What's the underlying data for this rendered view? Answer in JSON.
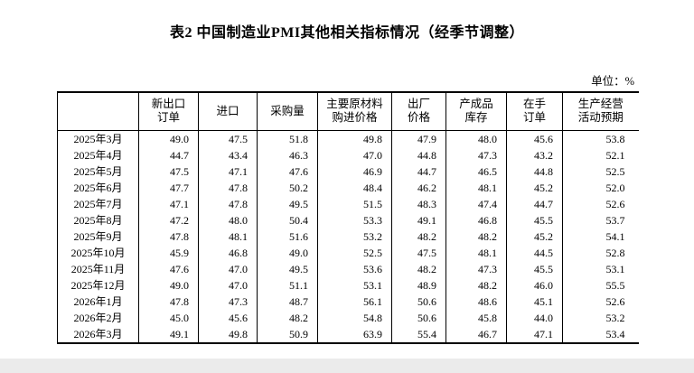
{
  "title": "表2 中国制造业PMI其他相关指标情况（经季节调整）",
  "unit_label": "单位：%",
  "table": {
    "columns": [
      "",
      "新出口\n订单",
      "进口",
      "采购量",
      "主要原材料\n购进价格",
      "出厂\n价格",
      "产成品\n库存",
      "在手\n订单",
      "生产经营\n活动预期"
    ],
    "rows": [
      {
        "month": "2025年3月",
        "values": [
          "49.0",
          "47.5",
          "51.8",
          "49.8",
          "47.9",
          "48.0",
          "45.6",
          "53.8"
        ]
      },
      {
        "month": "2025年4月",
        "values": [
          "44.7",
          "43.4",
          "46.3",
          "47.0",
          "44.8",
          "47.3",
          "43.2",
          "52.1"
        ]
      },
      {
        "month": "2025年5月",
        "values": [
          "47.5",
          "47.1",
          "47.6",
          "46.9",
          "44.7",
          "46.5",
          "44.8",
          "52.5"
        ]
      },
      {
        "month": "2025年6月",
        "values": [
          "47.7",
          "47.8",
          "50.2",
          "48.4",
          "46.2",
          "48.1",
          "45.2",
          "52.0"
        ]
      },
      {
        "month": "2025年7月",
        "values": [
          "47.1",
          "47.8",
          "49.5",
          "51.5",
          "48.3",
          "47.4",
          "44.7",
          "52.6"
        ]
      },
      {
        "month": "2025年8月",
        "values": [
          "47.2",
          "48.0",
          "50.4",
          "53.3",
          "49.1",
          "46.8",
          "45.5",
          "53.7"
        ]
      },
      {
        "month": "2025年9月",
        "values": [
          "47.8",
          "48.1",
          "51.6",
          "53.2",
          "48.2",
          "48.2",
          "45.2",
          "54.1"
        ]
      },
      {
        "month": "2025年10月",
        "values": [
          "45.9",
          "46.8",
          "49.0",
          "52.5",
          "47.5",
          "48.1",
          "44.5",
          "52.8"
        ]
      },
      {
        "month": "2025年11月",
        "values": [
          "47.6",
          "47.0",
          "49.5",
          "53.6",
          "48.2",
          "47.3",
          "45.5",
          "53.1"
        ]
      },
      {
        "month": "2025年12月",
        "values": [
          "49.0",
          "47.0",
          "51.1",
          "53.1",
          "48.9",
          "48.2",
          "46.0",
          "55.5"
        ]
      },
      {
        "month": "2026年1月",
        "values": [
          "47.8",
          "47.3",
          "48.7",
          "56.1",
          "50.6",
          "48.6",
          "45.1",
          "52.6"
        ]
      },
      {
        "month": "2026年2月",
        "values": [
          "45.0",
          "45.6",
          "48.2",
          "54.8",
          "50.6",
          "45.8",
          "44.0",
          "53.2"
        ]
      },
      {
        "month": "2026年3月",
        "values": [
          "49.1",
          "49.8",
          "50.9",
          "63.9",
          "55.4",
          "46.7",
          "47.1",
          "53.4"
        ]
      }
    ]
  }
}
